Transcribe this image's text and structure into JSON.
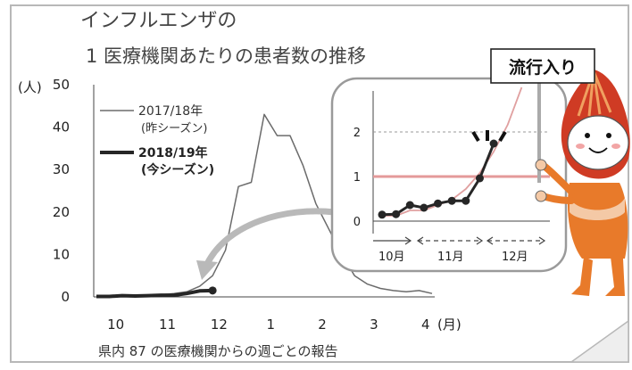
{
  "chart_data": [
    {
      "type": "line",
      "title_line1": "インフルエンザの",
      "title_line2": "1 医療機関あたりの患者数の推移",
      "ylabel": "(人)",
      "xlabel": "(月)",
      "ylim": [
        0,
        50
      ],
      "yticks": [
        "0",
        "10",
        "20",
        "30",
        "40",
        "50"
      ],
      "xlim": [
        0,
        26
      ],
      "xtick_labels": [
        {
          "label": "10",
          "x": 1.5
        },
        {
          "label": "11",
          "x": 5.5
        },
        {
          "label": "12",
          "x": 9.5
        },
        {
          "label": "1",
          "x": 13.5
        },
        {
          "label": "2",
          "x": 17.5
        },
        {
          "label": "3",
          "x": 21.5
        },
        {
          "label": "4",
          "x": 25.5
        }
      ],
      "footnote": "県内 87 の医療機関からの週ごとの報告",
      "series": [
        {
          "name": "2017/18年\n(昨シーズン)",
          "legend_line1": "2017/18年",
          "legend_line2": "(昨シーズン)",
          "color": "#6b6b6b",
          "x": [
            0,
            1,
            2,
            3,
            4,
            5,
            6,
            7,
            8,
            9,
            10,
            11,
            12,
            13,
            14,
            15,
            16,
            17,
            18,
            19,
            20,
            21,
            22,
            23,
            24,
            25,
            26
          ],
          "values": [
            0.1,
            0.1,
            0.2,
            0.2,
            0.3,
            0.5,
            0.8,
            1.2,
            2.5,
            5.0,
            11,
            26,
            27,
            43,
            38,
            38,
            31,
            22,
            16,
            10,
            5,
            3,
            2,
            1.5,
            1.2,
            1.5,
            0.8
          ]
        },
        {
          "name": "2018/19年\n(今シーズン)",
          "legend_line1": "2018/19年",
          "legend_line2": "(今シーズン)",
          "color": "#262626",
          "x": [
            0,
            1,
            2,
            3,
            4,
            5,
            6,
            7,
            8,
            9
          ],
          "values": [
            0.1,
            0.1,
            0.3,
            0.2,
            0.3,
            0.4,
            0.4,
            0.8,
            1.4,
            1.5
          ]
        }
      ]
    },
    {
      "type": "line",
      "ylim": [
        0,
        2.5
      ],
      "yticks": [
        "0",
        "1",
        "2"
      ],
      "xlim": [
        0,
        11
      ],
      "threshold": 1.0,
      "month_labels": [
        "10月",
        "11月",
        "12月"
      ],
      "series": [
        {
          "name": "2017/18年",
          "color": "#e0a0a0",
          "x": [
            0,
            1,
            2,
            3,
            4,
            5,
            6,
            7,
            8,
            9,
            10
          ],
          "values": [
            0.1,
            0.1,
            0.2,
            0.2,
            0.3,
            0.4,
            0.6,
            0.9,
            1.3,
            1.8,
            2.5
          ]
        },
        {
          "name": "2018/19年",
          "color": "#262626",
          "x": [
            0,
            1,
            2,
            3,
            4,
            5,
            6,
            7,
            8
          ],
          "values": [
            0.12,
            0.13,
            0.3,
            0.25,
            0.33,
            0.38,
            0.38,
            0.8,
            1.45
          ]
        }
      ]
    }
  ],
  "callout": {
    "label": "流行入り"
  },
  "colors": {
    "frame": "#b8b8b8",
    "inset_border": "#9a9a9a",
    "threshold": "#e49a9a",
    "grid": "#999999",
    "arrow": "#b9b9b9",
    "mascot_orange": "#e87a2a",
    "mascot_red": "#cf3b24",
    "mascot_skin": "#f4c9a6"
  }
}
